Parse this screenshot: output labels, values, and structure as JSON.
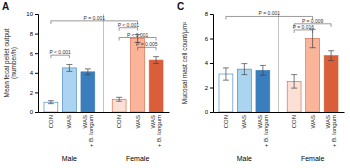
{
  "chart_data": [
    {
      "type": "bar",
      "title": "A",
      "ylabel": "Mean fecal pellet output\n(number/h)",
      "categories": [
        "CON",
        "WAS",
        "WAS\n+ B. longum"
      ],
      "series": [
        {
          "name": "Male",
          "color": "#3a7ebe",
          "colors": [
            "#ffffff",
            "#aad4f0",
            "#3a7ebe"
          ],
          "values": [
            1.0,
            4.5,
            4.1
          ],
          "errors": [
            0.15,
            0.35,
            0.3
          ]
        },
        {
          "name": "Female",
          "color": "#d95f3b",
          "colors": [
            "#fce0d5",
            "#f9b49a",
            "#d95f3b"
          ],
          "values": [
            1.3,
            7.5,
            5.3
          ],
          "errors": [
            0.2,
            0.4,
            0.35
          ]
        }
      ],
      "ylim": [
        0,
        10
      ],
      "yticks": [
        0,
        2,
        4,
        6,
        8,
        10
      ],
      "annotations": [
        {
          "text": "P < 0.001",
          "y": 5.8,
          "from": [
            "Male",
            "CON"
          ],
          "to": [
            "Male",
            "WAS"
          ]
        },
        {
          "text": "P = 0.001",
          "y": 9.3,
          "from": [
            "Male",
            "CON"
          ],
          "to": [
            "Female",
            "WAS"
          ]
        },
        {
          "text": "P < 0.001",
          "y": 8.6,
          "from": [
            "Female",
            "CON"
          ],
          "to": [
            "Female",
            "WAS"
          ]
        },
        {
          "text": "P < 0.001",
          "y": 7.6,
          "from": [
            "Female",
            "CON"
          ],
          "to": [
            "Female",
            "WAS\n+ B. longum"
          ]
        },
        {
          "text": "P = 0.005",
          "y": 6.6,
          "from": [
            "Female",
            "WAS"
          ],
          "to": [
            "Female",
            "WAS\n+ B. longum"
          ]
        }
      ]
    },
    {
      "type": "bar",
      "title": "C",
      "ylabel": "Mucosal mast cell count/μm²",
      "categories": [
        "CON",
        "WAS",
        "WAS\n+ B. longum"
      ],
      "series": [
        {
          "name": "Male",
          "color": "#3a7ebe",
          "colors": [
            "#ffffff",
            "#aad4f0",
            "#3a7ebe"
          ],
          "values": [
            3.1,
            3.5,
            3.4
          ],
          "errors": [
            0.5,
            0.45,
            0.4
          ]
        },
        {
          "name": "Female",
          "color": "#d95f3b",
          "colors": [
            "#fce0d5",
            "#f9b49a",
            "#d95f3b"
          ],
          "values": [
            2.5,
            6.0,
            4.6
          ],
          "errors": [
            0.55,
            0.75,
            0.4
          ]
        }
      ],
      "ylim": [
        0,
        8
      ],
      "yticks": [
        0,
        2,
        4,
        6,
        8
      ],
      "annotations": [
        {
          "text": "P = 0.001",
          "y": 7.8,
          "from": [
            "Male",
            "CON"
          ],
          "to": [
            "Female",
            "WAS"
          ]
        },
        {
          "text": "P = 0.009",
          "y": 7.2,
          "from": [
            "Female",
            "CON"
          ],
          "to": [
            "Female",
            "WAS\n+ B. longum"
          ]
        },
        {
          "text": "P = 0.016",
          "y": 6.7,
          "from": [
            "Female",
            "CON"
          ],
          "to": [
            "Female",
            "WAS"
          ]
        }
      ]
    }
  ]
}
